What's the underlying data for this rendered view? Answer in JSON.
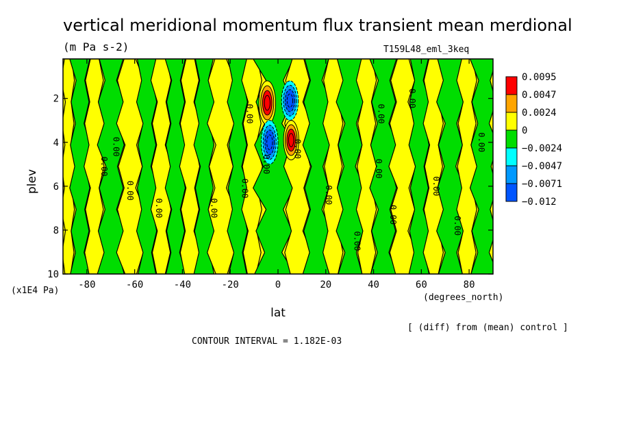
{
  "chart_data": {
    "type": "heatmap",
    "title": "vertical meridional momentum flux transient mean merdional",
    "units": "(m Pa s-2)",
    "run_label": "T159L48_eml_3keq",
    "xlabel": "lat",
    "x_units": "(degrees_north)",
    "ylabel": "plev",
    "y_units": "(x1E4 Pa)",
    "diff_note": "[ (diff) from (mean) control ]",
    "contour_interval": "CONTOUR INTERVAL = 1.182E-03",
    "xlim": [
      -90,
      90
    ],
    "ylim": [
      10,
      0.2
    ],
    "x_ticks": [
      -80,
      -60,
      -40,
      -20,
      0,
      20,
      40,
      60,
      80
    ],
    "x_tick_labels": [
      "-80",
      "-60",
      "-40",
      "-20",
      "0",
      "20",
      "40",
      "60",
      "80"
    ],
    "y_ticks": [
      2,
      4,
      6,
      8,
      10
    ],
    "y_tick_labels": [
      "2",
      "4",
      "6",
      "8",
      "10"
    ],
    "colorbar": {
      "levels": [
        "0.0095",
        "0.0047",
        "0.0024",
        "0",
        "−0.0024",
        "−0.0047",
        "−0.0071",
        "−0.012"
      ],
      "colors": [
        "#ff0000",
        "#ffa500",
        "#ffff00",
        "#00dd00",
        "#00ffff",
        "#0099ff",
        "#0055ff"
      ]
    },
    "band_colors": {
      "positive": "#ffff00",
      "negative": "#00dd00"
    },
    "bands": [
      [
        -90,
        -86,
        "pos"
      ],
      [
        -86,
        -80,
        "neg"
      ],
      [
        -80,
        -74,
        "pos"
      ],
      [
        -74,
        -66,
        "neg"
      ],
      [
        -66,
        -58,
        "pos"
      ],
      [
        -58,
        -52,
        "neg"
      ],
      [
        -52,
        -46,
        "pos"
      ],
      [
        -46,
        -40,
        "neg"
      ],
      [
        -40,
        -34,
        "pos"
      ],
      [
        -34,
        -28,
        "neg"
      ],
      [
        -28,
        -20,
        "pos"
      ],
      [
        -20,
        -14,
        "neg"
      ],
      [
        -14,
        -8,
        "pos"
      ],
      [
        -8,
        4,
        "neg"
      ],
      [
        4,
        12,
        "pos"
      ],
      [
        12,
        20,
        "neg"
      ],
      [
        20,
        26,
        "pos"
      ],
      [
        26,
        34,
        "neg"
      ],
      [
        34,
        40,
        "pos"
      ],
      [
        40,
        48,
        "neg"
      ],
      [
        48,
        56,
        "pos"
      ],
      [
        56,
        62,
        "neg"
      ],
      [
        62,
        68,
        "pos"
      ],
      [
        68,
        76,
        "neg"
      ],
      [
        76,
        82,
        "pos"
      ],
      [
        82,
        90,
        "neg"
      ]
    ],
    "extrema": [
      {
        "lat": -4.5,
        "plev": 2.2,
        "level": 0.0095,
        "dlat": 3.5,
        "dplev": 1.0
      },
      {
        "lat": 5.0,
        "plev": 2.1,
        "level": -0.0071,
        "dlat": 3.5,
        "dplev": 0.9
      },
      {
        "lat": -3.5,
        "plev": 4.0,
        "level": -0.0071,
        "dlat": 3.5,
        "dplev": 1.0
      },
      {
        "lat": 5.5,
        "plev": 3.9,
        "level": 0.0095,
        "dlat": 3.2,
        "dplev": 0.9
      }
    ],
    "contour_labels": [
      {
        "lat": -74,
        "plev": 5.1,
        "text": "0.00"
      },
      {
        "lat": -63,
        "plev": 6.2,
        "text": "0.00"
      },
      {
        "lat": -51,
        "plev": 7.0,
        "text": "0.00"
      },
      {
        "lat": -69,
        "plev": 4.2,
        "text": "0.00"
      },
      {
        "lat": -28,
        "plev": 7.0,
        "text": "0.00"
      },
      {
        "lat": -15,
        "plev": 6.1,
        "text": "0.00"
      },
      {
        "lat": -6,
        "plev": 5.0,
        "text": "0.00"
      },
      {
        "lat": 20,
        "plev": 6.4,
        "text": "0.00"
      },
      {
        "lat": 32,
        "plev": 8.5,
        "text": "0.00"
      },
      {
        "lat": 41,
        "plev": 5.2,
        "text": "0.00"
      },
      {
        "lat": 47,
        "plev": 7.3,
        "text": "0.00"
      },
      {
        "lat": 42,
        "plev": 2.7,
        "text": "0.00"
      },
      {
        "lat": 55,
        "plev": 2.0,
        "text": "0.00"
      },
      {
        "lat": 65,
        "plev": 6.0,
        "text": "0.00"
      },
      {
        "lat": 74,
        "plev": 7.8,
        "text": "0.00"
      },
      {
        "lat": 84,
        "plev": 4.0,
        "text": "0.00"
      },
      {
        "lat": -13,
        "plev": 2.7,
        "text": "0.00"
      },
      {
        "lat": 7,
        "plev": 4.3,
        "text": "0.00"
      }
    ]
  }
}
